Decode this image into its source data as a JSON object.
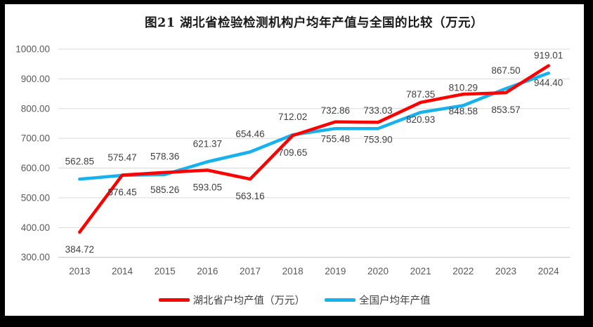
{
  "title": "图21 湖北省检验检测机构户均年产值与全国的比较（万元）",
  "colors": {
    "hubei_red": "#FF0000",
    "national_blue": "#16B2EE",
    "gridline": "#D9D9D9",
    "axis_line": "#BFBFBF",
    "tick_text": "#595959",
    "data_label_text": "#404040",
    "title_text": "#1a1a1a",
    "frame_border": "#000000",
    "background": "#FFFFFF"
  },
  "chart_data": {
    "type": "line",
    "title": "图21 湖北省检验检测机构户均年产值与全国的比较（万元）",
    "categories": [
      "2013",
      "2014",
      "2015",
      "2016",
      "2017",
      "2018",
      "2019",
      "2020",
      "2021",
      "2022",
      "2023",
      "2024"
    ],
    "series": [
      {
        "key": "hubei",
        "name": "湖北省户均产值（万元）",
        "color": "#FF0000",
        "label_position": "below",
        "values": [
          384.72,
          576.45,
          585.26,
          593.05,
          563.16,
          709.65,
          755.48,
          753.9,
          820.93,
          848.58,
          853.57,
          944.4
        ]
      },
      {
        "key": "national",
        "name": "全国户均年产值",
        "color": "#16B2EE",
        "label_position": "above",
        "values": [
          562.85,
          575.47,
          578.36,
          621.37,
          654.46,
          712.02,
          732.86,
          733.03,
          787.35,
          810.29,
          867.5,
          919.01
        ]
      }
    ],
    "xlabel": "",
    "ylabel": "",
    "ylim": [
      300,
      1000
    ],
    "ytick_step": 100,
    "ytick_labels": [
      "1000.00",
      "900.00",
      "800.00",
      "700.00",
      "600.00",
      "500.00",
      "400.00",
      "300.00"
    ],
    "grid": true,
    "legend_position": "bottom",
    "value_label_decimals": 2
  }
}
